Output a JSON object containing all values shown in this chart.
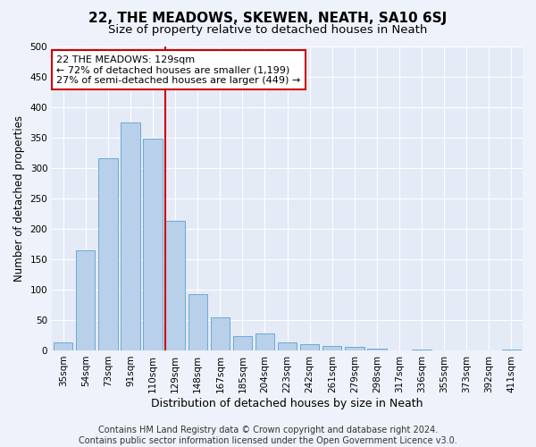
{
  "title": "22, THE MEADOWS, SKEWEN, NEATH, SA10 6SJ",
  "subtitle": "Size of property relative to detached houses in Neath",
  "xlabel": "Distribution of detached houses by size in Neath",
  "ylabel": "Number of detached properties",
  "footer_line1": "Contains HM Land Registry data © Crown copyright and database right 2024.",
  "footer_line2": "Contains public sector information licensed under the Open Government Licence v3.0.",
  "categories": [
    "35sqm",
    "54sqm",
    "73sqm",
    "91sqm",
    "110sqm",
    "129sqm",
    "148sqm",
    "167sqm",
    "185sqm",
    "204sqm",
    "223sqm",
    "242sqm",
    "261sqm",
    "279sqm",
    "298sqm",
    "317sqm",
    "336sqm",
    "355sqm",
    "373sqm",
    "392sqm",
    "411sqm"
  ],
  "values": [
    13,
    165,
    315,
    375,
    348,
    213,
    93,
    55,
    23,
    28,
    13,
    10,
    8,
    6,
    3,
    0,
    1,
    0,
    0,
    0,
    1
  ],
  "bar_color": "#b8d0ea",
  "bar_edge_color": "#6aaad4",
  "highlight_line_idx": 5,
  "highlight_line_color": "#cc0000",
  "annotation_line1": "22 THE MEADOWS: 129sqm",
  "annotation_line2": "← 72% of detached houses are smaller (1,199)",
  "annotation_line3": "27% of semi-detached houses are larger (449) →",
  "annotation_box_color": "#cc0000",
  "ylim": [
    0,
    500
  ],
  "yticks": [
    0,
    50,
    100,
    150,
    200,
    250,
    300,
    350,
    400,
    450,
    500
  ],
  "bg_color": "#eef2fa",
  "plot_bg_color": "#e4eaf6",
  "grid_color": "#ffffff",
  "title_fontsize": 11,
  "subtitle_fontsize": 9.5,
  "xlabel_fontsize": 9,
  "ylabel_fontsize": 8.5,
  "tick_fontsize": 7.5,
  "annotation_fontsize": 8,
  "footer_fontsize": 7
}
